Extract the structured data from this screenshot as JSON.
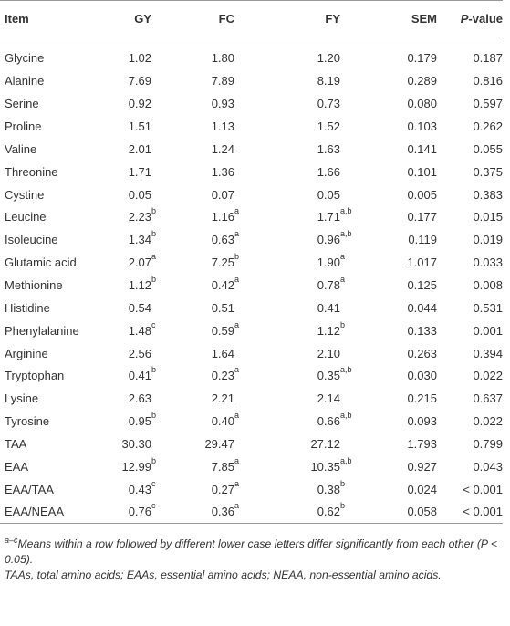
{
  "table": {
    "header": [
      "Item",
      "GY",
      "FC",
      "FY",
      "SEM",
      {
        "italic": "P",
        "rest": "-value"
      }
    ],
    "rows": [
      [
        "Glycine",
        "1.02",
        "1.80",
        "1.20",
        "0.179",
        "0.187"
      ],
      [
        "Alanine",
        "7.69",
        "7.89",
        "8.19",
        "0.289",
        "0.816"
      ],
      [
        "Serine",
        "0.92",
        "0.93",
        "0.73",
        "0.080",
        "0.597"
      ],
      [
        "Proline",
        "1.51",
        "1.13",
        "1.52",
        "0.103",
        "0.262"
      ],
      [
        "Valine",
        "2.01",
        "1.24",
        "1.63",
        "0.141",
        "0.055"
      ],
      [
        "Threonine",
        "1.71",
        "1.36",
        "1.66",
        "0.101",
        "0.375"
      ],
      [
        "Cystine",
        "0.05",
        "0.07",
        "0.05",
        "0.005",
        "0.383"
      ],
      [
        "Leucine",
        {
          "value": "2.23",
          "sup": "b"
        },
        {
          "value": "1.16",
          "sup": "a"
        },
        {
          "value": "1.71",
          "sup": "a,b"
        },
        "0.177",
        "0.015"
      ],
      [
        "Isoleucine",
        {
          "value": "1.34",
          "sup": "b"
        },
        {
          "value": "0.63",
          "sup": "a"
        },
        {
          "value": "0.96",
          "sup": "a,b"
        },
        "0.119",
        "0.019"
      ],
      [
        "Glutamic acid",
        {
          "value": "2.07",
          "sup": "a"
        },
        {
          "value": "7.25",
          "sup": "b"
        },
        {
          "value": "1.90",
          "sup": "a"
        },
        "1.017",
        "0.033"
      ],
      [
        "Methionine",
        {
          "value": "1.12",
          "sup": "b"
        },
        {
          "value": "0.42",
          "sup": "a"
        },
        {
          "value": "0.78",
          "sup": "a"
        },
        "0.125",
        "0.008"
      ],
      [
        "Histidine",
        "0.54",
        "0.51",
        "0.41",
        "0.044",
        "0.531"
      ],
      [
        "Phenylalanine",
        {
          "value": "1.48",
          "sup": "c"
        },
        {
          "value": "0.59",
          "sup": "a"
        },
        {
          "value": "1.12",
          "sup": "b"
        },
        "0.133",
        "0.001"
      ],
      [
        "Arginine",
        "2.56",
        "1.64",
        "2.10",
        "0.263",
        "0.394"
      ],
      [
        "Tryptophan",
        {
          "value": "0.41",
          "sup": "b"
        },
        {
          "value": "0.23",
          "sup": "a"
        },
        {
          "value": "0.35",
          "sup": "a,b"
        },
        "0.030",
        "0.022"
      ],
      [
        "Lysine",
        "2.63",
        "2.21",
        "2.14",
        "0.215",
        "0.637"
      ],
      [
        "Tyrosine",
        {
          "value": "0.95",
          "sup": "b"
        },
        {
          "value": "0.40",
          "sup": "a"
        },
        {
          "value": "0.66",
          "sup": "a,b"
        },
        "0.093",
        "0.022"
      ],
      [
        "TAA",
        "30.30",
        "29.47",
        "27.12",
        "1.793",
        "0.799"
      ],
      [
        "EAA",
        {
          "value": "12.99",
          "sup": "b"
        },
        {
          "value": "7.85",
          "sup": "a"
        },
        {
          "value": "10.35",
          "sup": "a,b"
        },
        "0.927",
        "0.043"
      ],
      [
        "EAA/TAA",
        {
          "value": "0.43",
          "sup": "c"
        },
        {
          "value": "0.27",
          "sup": "a"
        },
        {
          "value": "0.38",
          "sup": "b"
        },
        "0.024",
        "< 0.001"
      ],
      [
        "EAA/NEAA",
        {
          "value": "0.76",
          "sup": "c"
        },
        {
          "value": "0.36",
          "sup": "a"
        },
        {
          "value": "0.62",
          "sup": "b"
        },
        "0.058",
        "< 0.001"
      ]
    ]
  },
  "footnotes": [
    {
      "sup": "a–c",
      "text": "Means within a row followed by different lower case letters differ significantly from each other (P < 0.05)."
    },
    {
      "text": "TAAs, total amino acids; EAAs, essential amino acids; NEAA, non-essential amino acids."
    }
  ]
}
